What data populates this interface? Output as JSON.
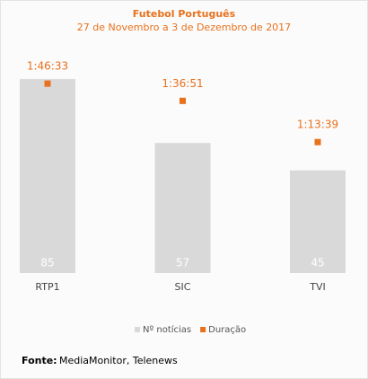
{
  "chart_data": {
    "type": "bar",
    "title": "Futebol Português",
    "subtitle": "27 de Novembro a 3 de Dezembro de 2017",
    "categories": [
      "RTP1",
      "SIC",
      "TVI"
    ],
    "series": [
      {
        "name": "Nº notícias",
        "type": "bar",
        "color": "#d9d9d9",
        "values": [
          85,
          57,
          45
        ]
      },
      {
        "name": "Duração",
        "type": "scatter",
        "axis": "y2",
        "color": "#e8711c",
        "values": [
          6393,
          5811,
          4419
        ],
        "value_labels": [
          "1:46:33",
          "1:36:51",
          "1:13:39"
        ]
      }
    ],
    "ylim": [
      0,
      100
    ],
    "y2lim": [
      0,
      7700
    ],
    "legend": "bottom"
  },
  "source": {
    "label": "Fonte:",
    "text": "MediaMonitor, Telenews"
  }
}
